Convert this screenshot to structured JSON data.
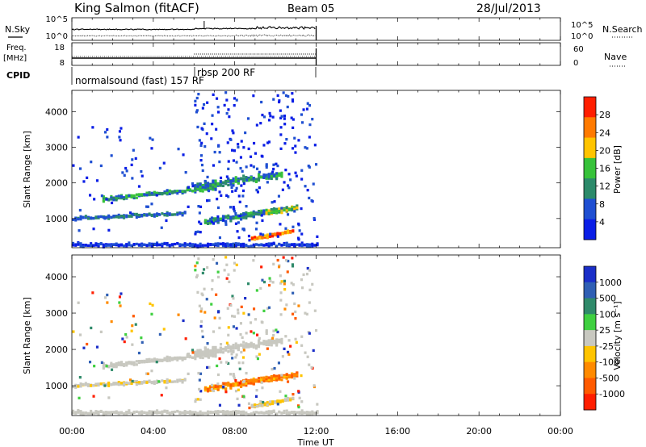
{
  "header": {
    "station": "King Salmon (fitACF)",
    "beam": "Beam 05",
    "date": "28/Jul/2013"
  },
  "chart_data": [
    {
      "type": "line",
      "name": "noise-panel",
      "left_label": "N.Sky",
      "right_label": "N.Search",
      "left_ticks": [
        "10^5",
        "10^0"
      ],
      "right_ticks": [
        "10^5",
        "10^0"
      ]
    },
    {
      "type": "line",
      "name": "frequency-panel",
      "left_label_line1": "Freq.",
      "left_label_line2": "[MHz]",
      "right_label": "Nave",
      "left_ticks": [
        "18",
        "8"
      ],
      "right_ticks": [
        "60",
        "0"
      ]
    },
    {
      "type": "table",
      "name": "cpid-panel",
      "label": "CPID",
      "segments": [
        {
          "text": "normalsound (fast) 157 RF"
        },
        {
          "text": "rbsp 200 RF"
        }
      ]
    },
    {
      "type": "heatmap",
      "name": "power",
      "ylabel": "Slant Range [km]",
      "yticks": [
        "1000",
        "2000",
        "3000",
        "4000"
      ],
      "ylim": [
        180,
        4600
      ],
      "colorbar": {
        "label": "Power [dB]",
        "ticks": [
          "4",
          "8",
          "12",
          "16",
          "20",
          "24",
          "28"
        ],
        "colors": [
          "#0a1ee6",
          "#1f4fd2",
          "#2c8a6a",
          "#37c23a",
          "#ffc400",
          "#ff7a00",
          "#ff1e00"
        ]
      }
    },
    {
      "type": "heatmap",
      "name": "velocity",
      "ylabel": "Slant Range [km]",
      "yticks": [
        "1000",
        "2000",
        "3000",
        "4000"
      ],
      "ylim": [
        180,
        4600
      ],
      "colorbar": {
        "label": "Velocity [m s⁻¹]",
        "ticks": [
          "1000",
          "500",
          "100",
          "25",
          "-25",
          "-100",
          "-500",
          "-1000"
        ],
        "colors": [
          "#1a2ec8",
          "#2f5fb4",
          "#2f8a6a",
          "#3fd040",
          "#c8c8c0",
          "#ffc400",
          "#ff8a00",
          "#ff5a00",
          "#ff1e00"
        ]
      }
    }
  ],
  "xaxis": {
    "label": "Time UT",
    "ticks": [
      "00:00",
      "04:00",
      "08:00",
      "12:00",
      "16:00",
      "20:00",
      "00:00"
    ],
    "range_hours": [
      0,
      24
    ]
  }
}
